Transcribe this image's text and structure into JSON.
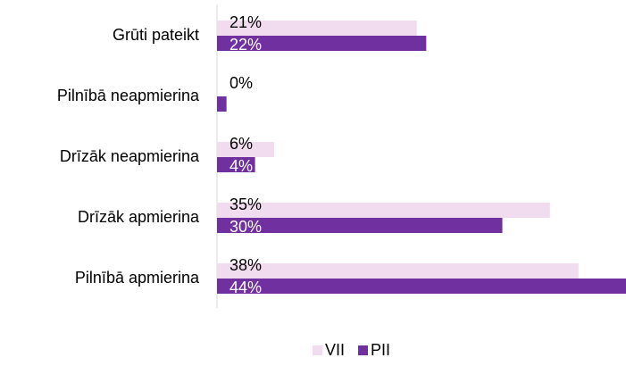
{
  "chart_data": {
    "type": "hbar",
    "categories": [
      "Grūti pateikt",
      "Pilnībā neapmierina",
      "Drīzāk neapmierina",
      "Drīzāk apmierina",
      "Pilnībā apmierina"
    ],
    "series": [
      {
        "name": "VII",
        "color": "#f0dcee",
        "values": [
          21,
          0,
          6,
          35,
          38
        ],
        "value_labels": [
          "21%",
          "0%",
          "6%",
          "35%",
          "38%"
        ]
      },
      {
        "name": "PII",
        "color": "#7030a0",
        "values": [
          22,
          1,
          4,
          30,
          44
        ],
        "value_labels": [
          "22%",
          null,
          "4%",
          "30%",
          "44%"
        ]
      }
    ],
    "xlim": [
      0,
      43
    ],
    "legend": "bottom"
  }
}
